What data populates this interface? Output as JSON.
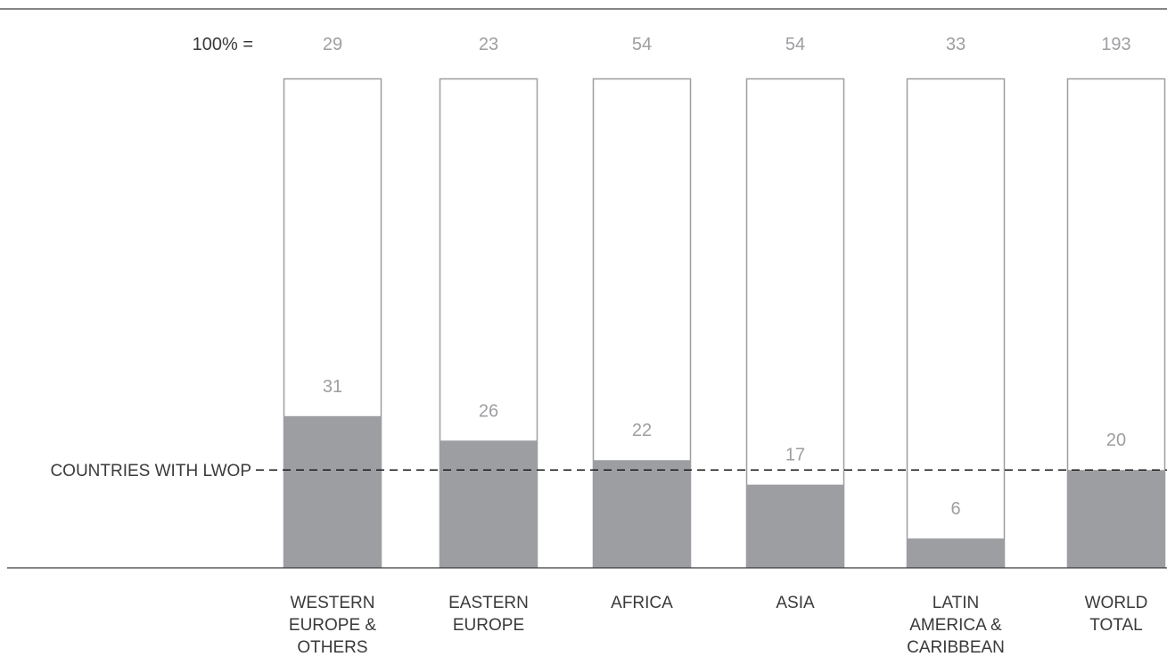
{
  "colors": {
    "filled": "#9d9ea1",
    "bar_outline": "#9d9ea1",
    "text_dark": "#3a3a3c",
    "text_light": "#9d9ea1",
    "axis": "#3a3a3c"
  },
  "chart_data": {
    "type": "bar",
    "stacked_percent": true,
    "total_prefix": "100% =",
    "categories": [
      [
        "WESTERN",
        "EUROPE &",
        "OTHERS"
      ],
      [
        "EASTERN",
        "EUROPE"
      ],
      [
        "AFRICA"
      ],
      [
        "ASIA"
      ],
      [
        "LATIN",
        "AMERICA &",
        "CARIBBEAN"
      ],
      [
        "WORLD",
        "TOTAL"
      ]
    ],
    "totals": [
      "29",
      "23",
      "54",
      "54",
      "33",
      "193"
    ],
    "values": [
      31,
      26,
      22,
      17,
      6,
      20
    ],
    "value_labels": [
      "31",
      "26",
      "22",
      "17",
      "6",
      "20"
    ],
    "ylim": [
      0,
      100
    ],
    "reference_line": {
      "label": "COUNTRIES WITH LWOP",
      "value": 20,
      "style": "dashed"
    },
    "grid": false,
    "legend": "none"
  }
}
